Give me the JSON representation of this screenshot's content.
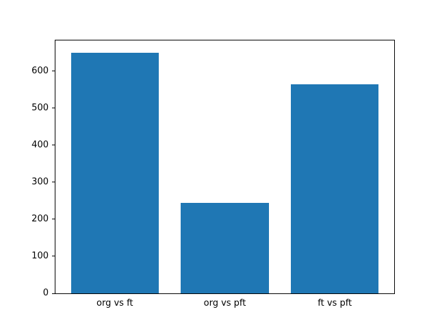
{
  "chart_data": {
    "type": "bar",
    "categories": [
      "org vs ft",
      "org vs pft",
      "ft vs pft"
    ],
    "values": [
      650,
      245,
      565
    ],
    "title": "",
    "xlabel": "",
    "ylabel": "",
    "ylim": [
      0,
      682.5
    ],
    "xlim": [
      -0.54,
      2.54
    ],
    "bar_width": 0.8,
    "yticks": [
      0,
      100,
      200,
      300,
      400,
      500,
      600
    ],
    "bar_color": "#1f77b4",
    "axis_color": "#000000",
    "background_color": "#ffffff",
    "grid": false,
    "legend": "none"
  }
}
